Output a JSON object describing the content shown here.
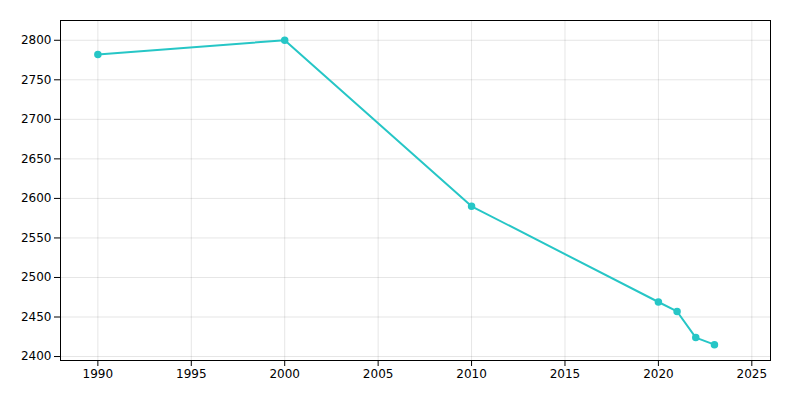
{
  "chart_data": {
    "type": "line",
    "x": [
      1990,
      2000,
      2010,
      2020,
      2021,
      2022,
      2023
    ],
    "values": [
      2782,
      2800,
      2590,
      2469,
      2457,
      2424,
      2415
    ],
    "color": "#26C6C6",
    "marker": "o",
    "xlim": [
      1988,
      2026
    ],
    "ylim": [
      2395,
      2825
    ],
    "xticks": [
      1990,
      1995,
      2000,
      2005,
      2010,
      2015,
      2020,
      2025
    ],
    "yticks": [
      2400,
      2450,
      2500,
      2550,
      2600,
      2650,
      2700,
      2750,
      2800
    ],
    "grid": true
  }
}
